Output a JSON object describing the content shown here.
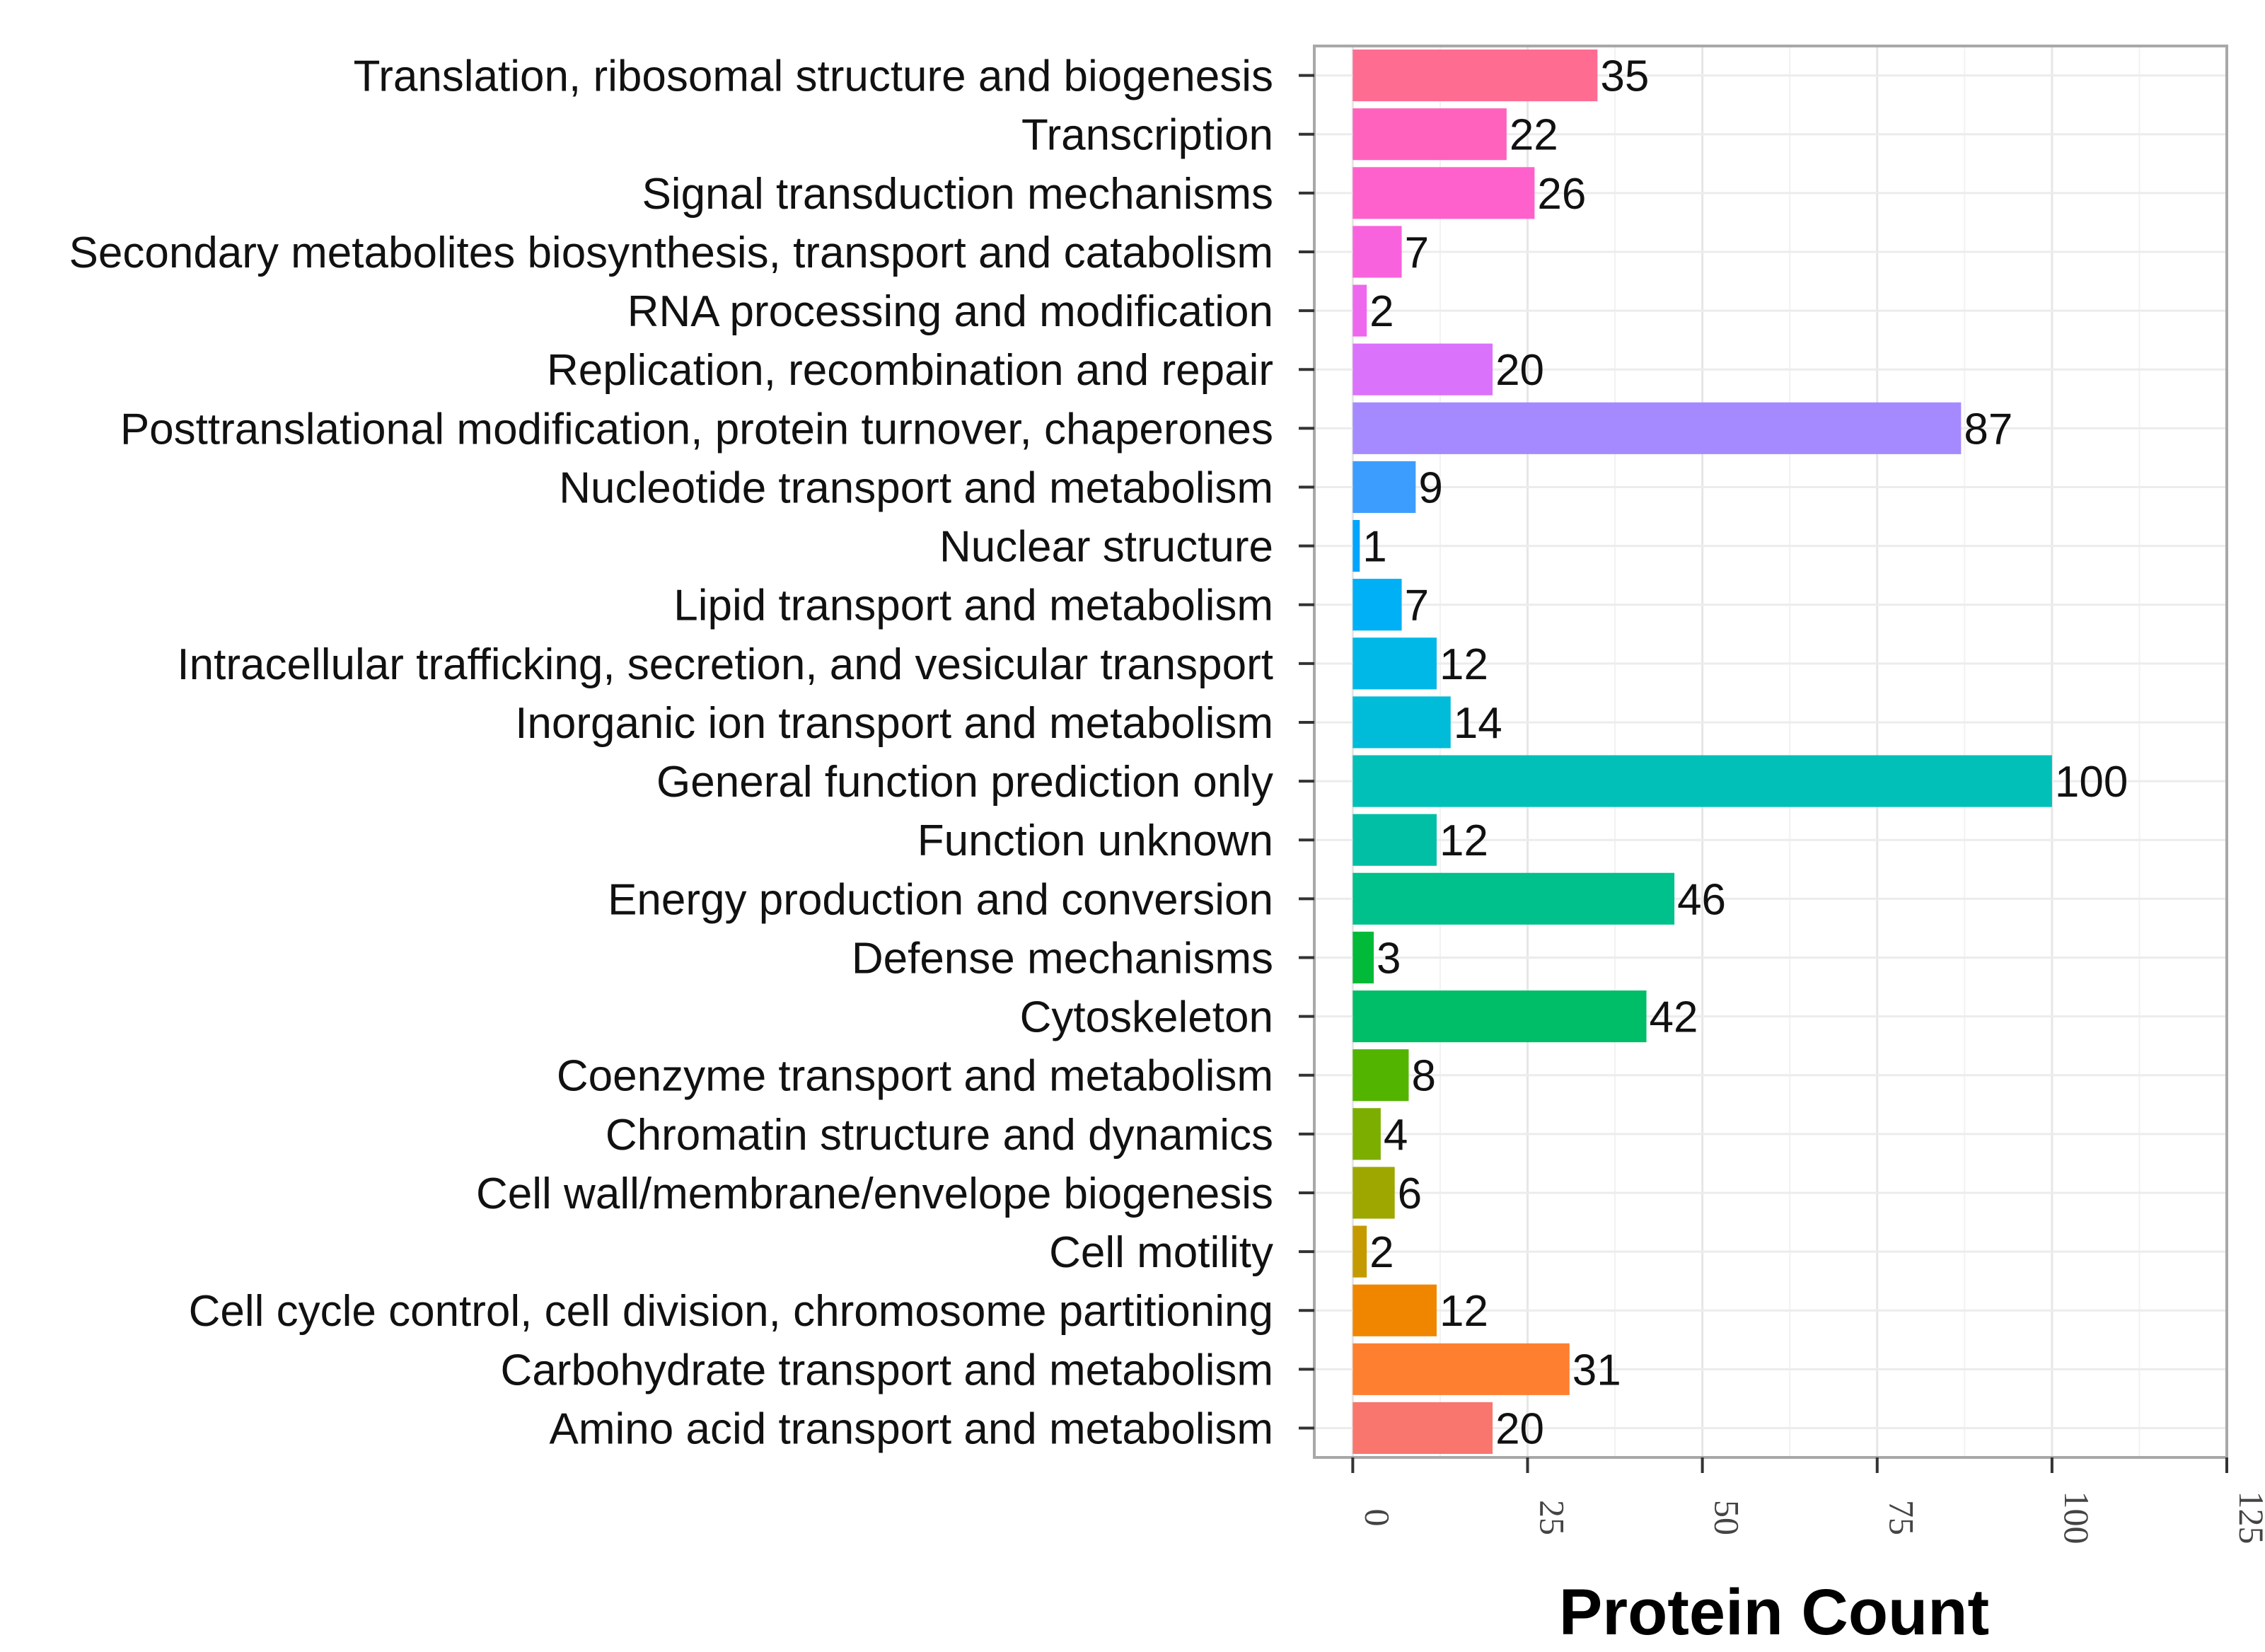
{
  "chart_data": {
    "type": "bar",
    "orientation": "horizontal",
    "title": "",
    "xlabel": "Protein Count",
    "ylabel": "",
    "xlim": [
      -5.5,
      125
    ],
    "xticks": [
      0,
      25,
      50,
      75,
      100,
      125
    ],
    "grid": true,
    "legend": "none",
    "categories": [
      "Translation, ribosomal structure and biogenesis",
      "Transcription",
      "Signal transduction mechanisms",
      "Secondary metabolites biosynthesis, transport and catabolism",
      "RNA processing and modification",
      "Replication, recombination and repair",
      "Posttranslational modification, protein turnover, chaperones",
      "Nucleotide transport and metabolism",
      "Nuclear structure",
      "Lipid transport and metabolism",
      "Intracellular trafficking, secretion, and vesicular transport",
      "Inorganic ion transport and metabolism",
      "General function prediction only",
      "Function unknown",
      "Energy production and conversion",
      "Defense mechanisms",
      "Cytoskeleton",
      "Coenzyme transport and metabolism",
      "Chromatin structure and dynamics",
      "Cell wall/membrane/envelope biogenesis",
      "Cell motility",
      "Cell cycle control, cell division, chromosome partitioning",
      "Carbohydrate transport and metabolism",
      "Amino acid transport and metabolism"
    ],
    "values": [
      35,
      22,
      26,
      7,
      2,
      20,
      87,
      9,
      1,
      7,
      12,
      14,
      100,
      12,
      46,
      3,
      42,
      8,
      4,
      6,
      2,
      12,
      31,
      20
    ],
    "colors": [
      "#FF6C91",
      "#FF62BC",
      "#FF61CC",
      "#F962DD",
      "#ED68ED",
      "#DB72FB",
      "#A58AFF",
      "#3C9DFF",
      "#00A5FF",
      "#00B0F6",
      "#00B8E7",
      "#00BCD8",
      "#00C0B8",
      "#00BFA5",
      "#00C08B",
      "#00BA38",
      "#00BE67",
      "#53B400",
      "#7CAE00",
      "#9DA700",
      "#C49A00",
      "#F08600",
      "#FF7F30",
      "#F8766D"
    ]
  }
}
